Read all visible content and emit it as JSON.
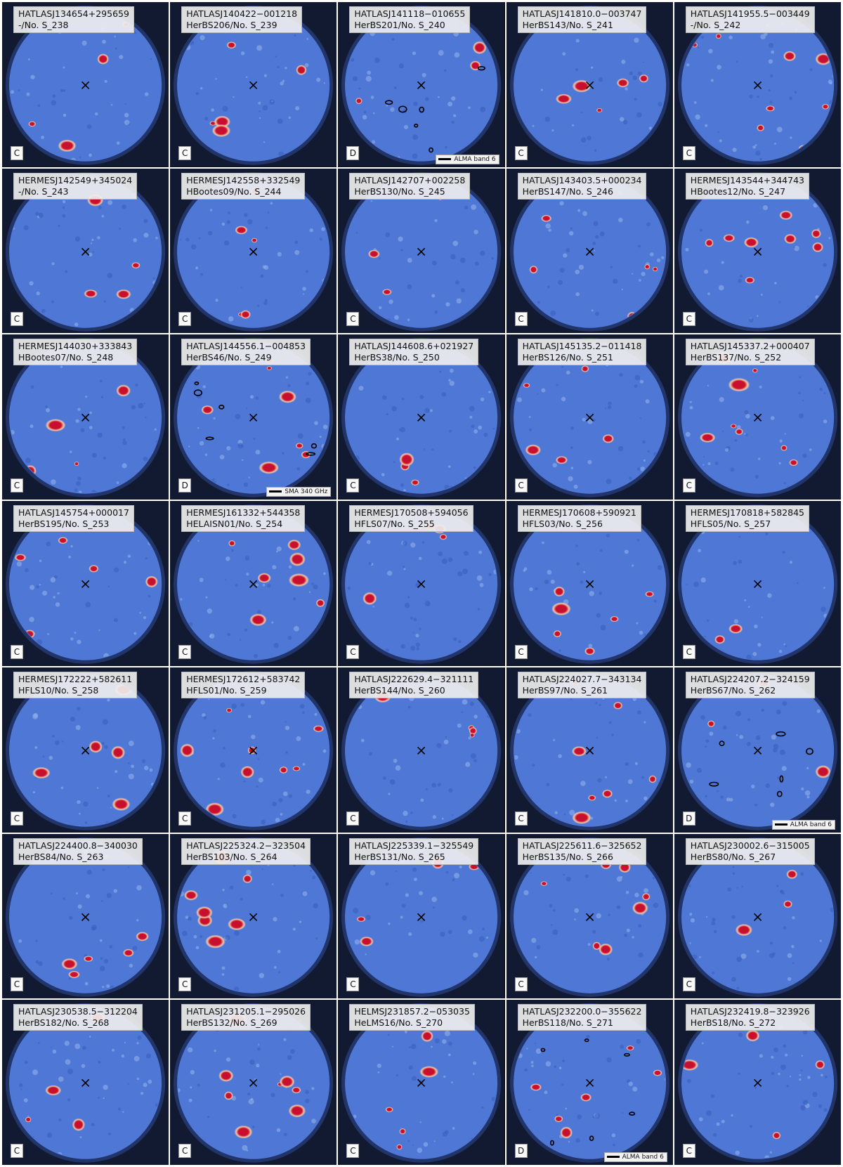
{
  "panels": [
    {
      "id": "HATLASJ134654+295659",
      "name": "-/No. S_238",
      "cls": "C"
    },
    {
      "id": "HATLASJ140422−001218",
      "name": "HerBS206/No. S_239",
      "cls": "C"
    },
    {
      "id": "HATLASJ141118−010655",
      "name": "HerBS201/No. S_240",
      "cls": "D",
      "beam": "ALMA band 6",
      "contours": true
    },
    {
      "id": "HATLASJ141810.0−003747",
      "name": "HerBS143/No. S_241",
      "cls": "C"
    },
    {
      "id": "HATLASJ141955.5−003449",
      "name": "-/No. S_242",
      "cls": "C"
    },
    {
      "id": "HERMESJ142549+345024",
      "name": "-/No. S_243",
      "cls": "C"
    },
    {
      "id": "HERMESJ142558+332549",
      "name": "HBootes09/No. S_244",
      "cls": "C"
    },
    {
      "id": "HATLASJ142707+002258",
      "name": "HerBS130/No. S_245",
      "cls": "C"
    },
    {
      "id": "HATLASJ143403.5+000234",
      "name": "HerBS147/No. S_246",
      "cls": "C"
    },
    {
      "id": "HERMESJ143544+344743",
      "name": "HBootes12/No. S_247",
      "cls": "C"
    },
    {
      "id": "HERMESJ144030+333843",
      "name": "HBootes07/No. S_248",
      "cls": "C"
    },
    {
      "id": "HATLASJ144556.1−004853",
      "name": "HerBS46/No. S_249",
      "cls": "D",
      "beam": "SMA 340 GHz",
      "contours": true
    },
    {
      "id": "HATLASJ144608.6+021927",
      "name": "HerBS38/No. S_250",
      "cls": "C"
    },
    {
      "id": "HATLASJ145135.2−011418",
      "name": "HerBS126/No. S_251",
      "cls": "C"
    },
    {
      "id": "HATLASJ145337.2+000407",
      "name": "HerBS137/No. S_252",
      "cls": "C"
    },
    {
      "id": "HATLASJ145754+000017",
      "name": "HerBS195/No. S_253",
      "cls": "C"
    },
    {
      "id": "HERMESJ161332+544358",
      "name": "HELAISN01/No. S_254",
      "cls": "C"
    },
    {
      "id": "HERMESJ170508+594056",
      "name": "HFLS07/No. S_255",
      "cls": "C"
    },
    {
      "id": "HERMESJ170608+590921",
      "name": "HFLS03/No. S_256",
      "cls": "C"
    },
    {
      "id": "HERMESJ170818+582845",
      "name": "HFLS05/No. S_257",
      "cls": "C"
    },
    {
      "id": "HERMESJ172222+582611",
      "name": "HFLS10/No. S_258",
      "cls": "C"
    },
    {
      "id": "HERMESJ172612+583742",
      "name": "HFLS01/No. S_259",
      "cls": "C"
    },
    {
      "id": "HATLASJ222629.4−321111",
      "name": "HerBS144/No. S_260",
      "cls": "C"
    },
    {
      "id": "HATLASJ224027.7−343134",
      "name": "HerBS97/No. S_261",
      "cls": "C"
    },
    {
      "id": "HATLASJ224207.2−324159",
      "name": "HerBS67/No. S_262",
      "cls": "D",
      "beam": "ALMA band 6",
      "contours": true
    },
    {
      "id": "HATLASJ224400.8−340030",
      "name": "HerBS84/No. S_263",
      "cls": "C"
    },
    {
      "id": "HATLASJ225324.2−323504",
      "name": "HerBS103/No. S_264",
      "cls": "C"
    },
    {
      "id": "HATLASJ225339.1−325549",
      "name": "HerBS131/No. S_265",
      "cls": "C"
    },
    {
      "id": "HATLASJ225611.6−325652",
      "name": "HerBS135/No. S_266",
      "cls": "C"
    },
    {
      "id": "HATLASJ230002.6−315005",
      "name": "HerBS80/No. S_267",
      "cls": "C"
    },
    {
      "id": "HATLASJ230538.5−312204",
      "name": "HerBS182/No. S_268",
      "cls": "C"
    },
    {
      "id": "HATLASJ231205.1−295026",
      "name": "HerBS132/No. S_269",
      "cls": "C"
    },
    {
      "id": "HELMSJ231857.2−053035",
      "name": "HeLMS16/No. S_270",
      "cls": "C"
    },
    {
      "id": "HATLASJ232200.0−355622",
      "name": "HerBS118/No. S_271",
      "cls": "D",
      "beam": "ALMA band 6",
      "contours": true
    },
    {
      "id": "HATLASJ232419.8−323926",
      "name": "HerBS18/No. S_272",
      "cls": "C"
    }
  ],
  "colors": {
    "sky": "#4f78d6",
    "source": "#c8102e",
    "halo": "#f3c8a8",
    "vignette": "#000000"
  }
}
